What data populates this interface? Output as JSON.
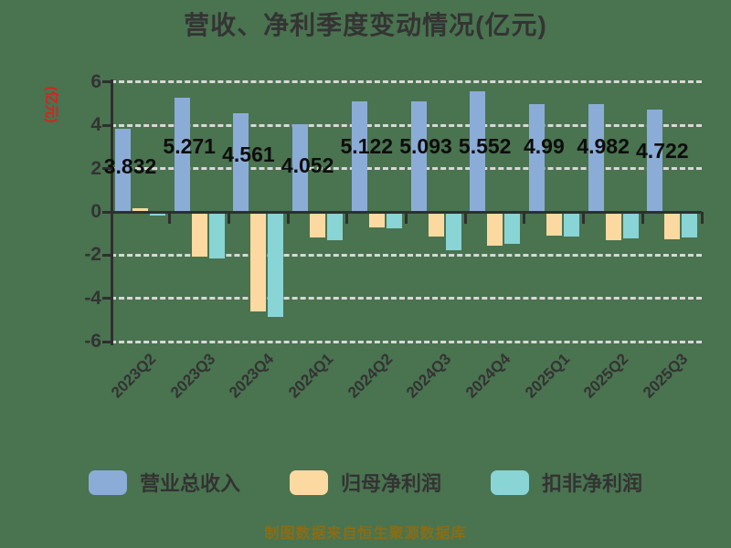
{
  "title": "营收、净利季度变动情况(亿元)",
  "y_axis_label": "(亿元)",
  "footer": "制图数据来自恒生聚源数据库",
  "colors": {
    "background": "#4a7350",
    "revenue_bar": "#8cacd8",
    "net_profit_bar": "#fcd9a0",
    "non_gaap_bar": "#89d4d4",
    "gridline": "#d8d8d8",
    "axis_line": "#2f2f2f",
    "title_text": "#343434",
    "axis_text": "#333333",
    "value_label_text": "#0d0d0d",
    "y_axis_label_text": "#dc2020",
    "footer_text": "#8a6d15"
  },
  "chart_data": {
    "type": "bar",
    "title": "营收、净利季度变动情况(亿元)",
    "xlabel": "",
    "ylabel": "(亿元)",
    "categories": [
      "2023Q2",
      "2023Q3",
      "2023Q4",
      "2024Q1",
      "2024Q2",
      "2024Q3",
      "2024Q4",
      "2025Q1",
      "2025Q2",
      "2025Q3"
    ],
    "series": [
      {
        "name": "营业总收入",
        "color_key": "revenue_bar",
        "values": [
          3.832,
          5.271,
          4.561,
          4.052,
          5.122,
          5.093,
          5.552,
          4.99,
          4.982,
          4.722
        ],
        "value_labels": [
          "3.832",
          "5.271",
          "4.561",
          "4.052",
          "5.122",
          "5.093",
          "5.552",
          "4.99",
          "4.982",
          "4.722"
        ],
        "labels_shown": true
      },
      {
        "name": "归母净利润",
        "color_key": "net_profit_bar",
        "values": [
          0.15,
          -2.05,
          -4.6,
          -1.2,
          -0.7,
          -1.12,
          -1.55,
          -1.08,
          -1.32,
          -1.26
        ],
        "labels_shown": false
      },
      {
        "name": "扣非净利润",
        "color_key": "non_gaap_bar",
        "values": [
          -0.03,
          -2.15,
          -4.87,
          -1.32,
          -0.75,
          -1.76,
          -1.48,
          -1.14,
          -1.21,
          -1.19
        ],
        "labels_shown": false
      }
    ],
    "y_ticks": [
      6,
      4,
      2,
      0,
      -2,
      -4,
      -6
    ],
    "ylim": [
      -6.6,
      6.3
    ],
    "grid": "horizontal-dashed",
    "legend_position": "bottom",
    "x_tick_label_rotation_deg": 45
  }
}
